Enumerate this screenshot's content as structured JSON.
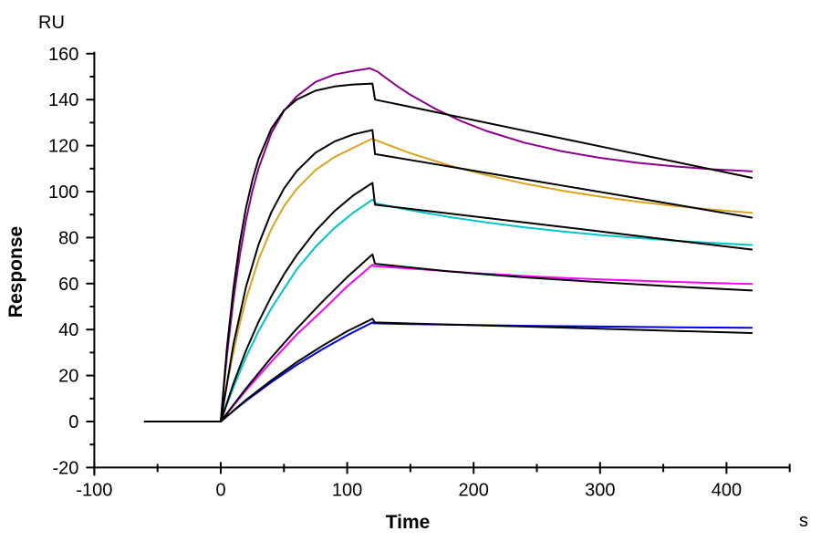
{
  "chart_data": {
    "type": "line",
    "title": "",
    "xlabel": "Time",
    "ylabel": "Response",
    "x_unit": "s",
    "y_unit": "RU",
    "xlim": [
      -100,
      450
    ],
    "ylim": [
      -20,
      160
    ],
    "grid": false,
    "legend_position": "none",
    "axis_color": "#000000",
    "x_major_ticks": [
      -100,
      0,
      100,
      200,
      300,
      400
    ],
    "x_minor_ticks": [
      -50,
      50,
      150,
      250,
      350,
      450
    ],
    "y_major_ticks": [
      -20,
      0,
      20,
      40,
      60,
      80,
      100,
      120,
      140,
      160
    ],
    "y_minor_ticks": [
      -10,
      10,
      30,
      50,
      70,
      90,
      110,
      130,
      150
    ],
    "series": [
      {
        "name": "sensorgram-trace-5-blue",
        "role": "data",
        "color": "#0000DD",
        "points": [
          [
            -60,
            0
          ],
          [
            0,
            0
          ],
          [
            10,
            4.6
          ],
          [
            20,
            9.0
          ],
          [
            40,
            17.1
          ],
          [
            60,
            24.6
          ],
          [
            80,
            31.3
          ],
          [
            100,
            37.5
          ],
          [
            120,
            43.1
          ],
          [
            121,
            42.7
          ],
          [
            150,
            42.4
          ],
          [
            200,
            42.0
          ],
          [
            250,
            41.6
          ],
          [
            300,
            41.3
          ],
          [
            360,
            41.0
          ],
          [
            420,
            40.8
          ]
        ]
      },
      {
        "name": "sensorgram-trace-4-magenta",
        "role": "data",
        "color": "#FF00FF",
        "points": [
          [
            -60,
            0
          ],
          [
            0,
            0
          ],
          [
            10,
            6.9
          ],
          [
            20,
            13.6
          ],
          [
            40,
            26.0
          ],
          [
            60,
            37.8
          ],
          [
            80,
            48.1
          ],
          [
            100,
            58.8
          ],
          [
            110,
            63.5
          ],
          [
            120,
            68.2
          ],
          [
            121,
            67.6
          ],
          [
            150,
            66.5
          ],
          [
            200,
            64.6
          ],
          [
            250,
            63.0
          ],
          [
            300,
            61.8
          ],
          [
            360,
            60.7
          ],
          [
            420,
            59.8
          ]
        ]
      },
      {
        "name": "sensorgram-trace-3-cyan",
        "role": "data",
        "color": "#00C5C5",
        "points": [
          [
            -60,
            0
          ],
          [
            0,
            0
          ],
          [
            5,
            7.7
          ],
          [
            10,
            14.9
          ],
          [
            20,
            28.0
          ],
          [
            30,
            39.4
          ],
          [
            40,
            49.2
          ],
          [
            50,
            57.7
          ],
          [
            60,
            66.1
          ],
          [
            75,
            76.0
          ],
          [
            90,
            84.2
          ],
          [
            105,
            90.9
          ],
          [
            120,
            96.5
          ],
          [
            123,
            94.8
          ],
          [
            150,
            91.9
          ],
          [
            180,
            89.0
          ],
          [
            210,
            86.6
          ],
          [
            240,
            84.5
          ],
          [
            270,
            82.7
          ],
          [
            300,
            81.1
          ],
          [
            330,
            79.8
          ],
          [
            360,
            78.6
          ],
          [
            390,
            77.6
          ],
          [
            420,
            76.8
          ]
        ]
      },
      {
        "name": "sensorgram-trace-2-gold",
        "role": "data",
        "color": "#D9A420",
        "points": [
          [
            -60,
            0
          ],
          [
            0,
            0
          ],
          [
            2.5,
            8.4
          ],
          [
            5,
            16.2
          ],
          [
            10,
            30.3
          ],
          [
            15,
            42.5
          ],
          [
            20,
            53.2
          ],
          [
            30,
            70.6
          ],
          [
            40,
            83.7
          ],
          [
            50,
            93.6
          ],
          [
            60,
            101.1
          ],
          [
            75,
            109.4
          ],
          [
            90,
            115.0
          ],
          [
            105,
            119.1
          ],
          [
            120,
            123.0
          ],
          [
            125,
            121.9
          ],
          [
            130,
            120.8
          ],
          [
            150,
            116.7
          ],
          [
            180,
            111.5
          ],
          [
            210,
            107.2
          ],
          [
            240,
            103.5
          ],
          [
            270,
            100.4
          ],
          [
            300,
            97.8
          ],
          [
            330,
            95.6
          ],
          [
            360,
            93.7
          ],
          [
            390,
            92.1
          ],
          [
            420,
            90.8
          ]
        ]
      },
      {
        "name": "sensorgram-trace-1-purple",
        "role": "data",
        "color": "#8B008B",
        "points": [
          [
            -60,
            0
          ],
          [
            0,
            0
          ],
          [
            2.5,
            15.3
          ],
          [
            5,
            29.2
          ],
          [
            10,
            52.9
          ],
          [
            15,
            72.1
          ],
          [
            20,
            87.6
          ],
          [
            25,
            100.2
          ],
          [
            30,
            110.3
          ],
          [
            40,
            125.4
          ],
          [
            50,
            135.1
          ],
          [
            60,
            141.4
          ],
          [
            75,
            147.7
          ],
          [
            90,
            150.9
          ],
          [
            105,
            152.5
          ],
          [
            118,
            153.6
          ],
          [
            124,
            152.2
          ],
          [
            130,
            149.7
          ],
          [
            140,
            145.7
          ],
          [
            150,
            142.1
          ],
          [
            170,
            135.9
          ],
          [
            190,
            130.7
          ],
          [
            210,
            126.4
          ],
          [
            240,
            121.3
          ],
          [
            270,
            117.5
          ],
          [
            300,
            114.7
          ],
          [
            330,
            112.5
          ],
          [
            360,
            110.9
          ],
          [
            390,
            109.7
          ],
          [
            420,
            108.8
          ]
        ]
      },
      {
        "name": "kinetic-fit-5-blue",
        "role": "fit",
        "color": "#000000",
        "points": [
          [
            -60,
            0
          ],
          [
            0,
            0
          ],
          [
            20,
            9.4
          ],
          [
            40,
            17.9
          ],
          [
            60,
            25.8
          ],
          [
            80,
            32.8
          ],
          [
            100,
            39.3
          ],
          [
            120,
            44.7
          ],
          [
            122,
            43.1
          ],
          [
            180,
            42.2
          ],
          [
            240,
            41.3
          ],
          [
            300,
            40.4
          ],
          [
            360,
            39.4
          ],
          [
            420,
            38.5
          ]
        ]
      },
      {
        "name": "kinetic-fit-4-magenta",
        "role": "fit",
        "color": "#000000",
        "points": [
          [
            -60,
            0
          ],
          [
            0,
            0
          ],
          [
            20,
            14.4
          ],
          [
            40,
            27.8
          ],
          [
            60,
            40.3
          ],
          [
            80,
            51.9
          ],
          [
            100,
            62.8
          ],
          [
            120,
            72.7
          ],
          [
            122,
            68.6
          ],
          [
            180,
            65.3
          ],
          [
            240,
            62.7
          ],
          [
            300,
            60.6
          ],
          [
            360,
            58.7
          ],
          [
            420,
            57.0
          ]
        ]
      },
      {
        "name": "kinetic-fit-3-cyan",
        "role": "fit",
        "color": "#000000",
        "points": [
          [
            -60,
            0
          ],
          [
            0,
            0
          ],
          [
            10,
            16.5
          ],
          [
            20,
            30.9
          ],
          [
            30,
            43.5
          ],
          [
            40,
            54.4
          ],
          [
            50,
            64.0
          ],
          [
            60,
            72.3
          ],
          [
            75,
            82.9
          ],
          [
            90,
            91.5
          ],
          [
            105,
            98.4
          ],
          [
            120,
            103.8
          ],
          [
            122,
            94.3
          ],
          [
            180,
            90.5
          ],
          [
            240,
            86.6
          ],
          [
            300,
            82.7
          ],
          [
            360,
            78.7
          ],
          [
            420,
            74.8
          ]
        ]
      },
      {
        "name": "kinetic-fit-2-gold",
        "role": "fit",
        "color": "#000000",
        "points": [
          [
            -60,
            0
          ],
          [
            0,
            0
          ],
          [
            10,
            33.6
          ],
          [
            20,
            58.6
          ],
          [
            30,
            77.2
          ],
          [
            40,
            91.0
          ],
          [
            50,
            101.3
          ],
          [
            60,
            108.9
          ],
          [
            75,
            116.9
          ],
          [
            90,
            121.8
          ],
          [
            105,
            124.9
          ],
          [
            120,
            126.8
          ],
          [
            122,
            116.3
          ],
          [
            160,
            112.8
          ],
          [
            200,
            109.1
          ],
          [
            240,
            105.4
          ],
          [
            280,
            101.7
          ],
          [
            320,
            98.0
          ],
          [
            360,
            94.3
          ],
          [
            420,
            88.7
          ]
        ]
      },
      {
        "name": "kinetic-fit-1-purple",
        "role": "fit",
        "color": "#000000",
        "points": [
          [
            -60,
            0
          ],
          [
            0,
            0
          ],
          [
            5,
            32.6
          ],
          [
            10,
            57.9
          ],
          [
            15,
            77.6
          ],
          [
            20,
            93.0
          ],
          [
            25,
            104.9
          ],
          [
            30,
            114.4
          ],
          [
            40,
            127.4
          ],
          [
            50,
            135.3
          ],
          [
            60,
            140.0
          ],
          [
            75,
            143.9
          ],
          [
            90,
            145.7
          ],
          [
            105,
            146.6
          ],
          [
            120,
            147.0
          ],
          [
            122,
            140.0
          ],
          [
            160,
            135.7
          ],
          [
            200,
            131.1
          ],
          [
            240,
            126.5
          ],
          [
            280,
            122.0
          ],
          [
            320,
            117.4
          ],
          [
            360,
            112.9
          ],
          [
            420,
            106.0
          ]
        ]
      }
    ]
  }
}
